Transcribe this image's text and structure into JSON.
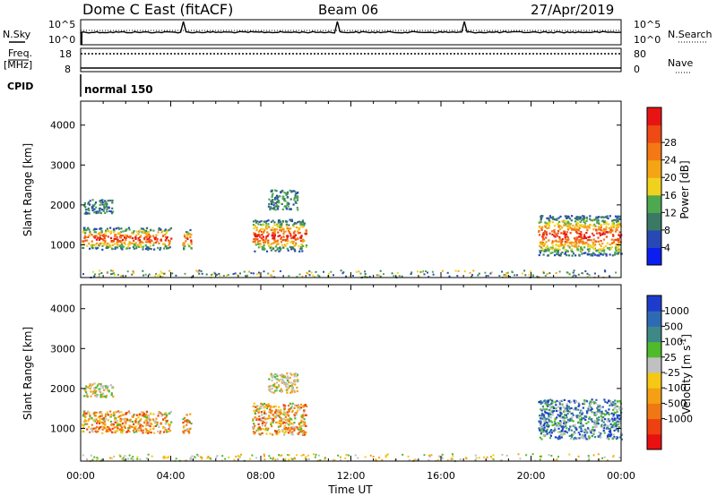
{
  "header": {
    "station": "Dome C East (fitACF)",
    "beam": "Beam 06",
    "date": "27/Apr/2019"
  },
  "top_panels": {
    "nsky_label": "N.Sky",
    "nsearch_label": "N.Search",
    "noise_ticks": [
      "10^5",
      "10^0"
    ],
    "freq_label_1": "Freq.",
    "freq_label_2": "[MHz]",
    "freq_ticks": [
      18,
      8
    ],
    "nave_label": "Nave",
    "nave_ticks": [
      80,
      0
    ],
    "cpid_label": "CPID",
    "cpid_value": "normal 150"
  },
  "axes": {
    "xlabel": "Time UT",
    "ylabel": "Slant Range [km]",
    "x_ticks": [
      "00:00",
      "04:00",
      "08:00",
      "12:00",
      "16:00",
      "20:00",
      "00:00"
    ],
    "y_ticks": [
      1000,
      2000,
      3000,
      4000
    ],
    "x_range_hours": [
      0,
      24
    ],
    "y_range_km": [
      180,
      4600
    ]
  },
  "colorbars": {
    "power": {
      "label": "Power [dB]",
      "ticks": [
        4,
        8,
        12,
        16,
        20,
        24,
        28
      ],
      "colors": [
        "#0a1ef0",
        "#2848b4",
        "#3a7a64",
        "#4ea850",
        "#f0d21e",
        "#f5a514",
        "#f47814",
        "#ee4a14",
        "#e81414"
      ]
    },
    "velocity": {
      "label": "Velocity [m s",
      "label_sup": "-1",
      "label_end": "]",
      "ticks": [
        "1000",
        "500",
        "100",
        "25",
        "-25",
        "-100",
        "-500",
        "-1000"
      ],
      "colors": [
        "#1e3ccc",
        "#2e6ab4",
        "#3e8888",
        "#4eba2c",
        "#c0c0c0",
        "#f5c814",
        "#f5a014",
        "#f07814",
        "#ee4010",
        "#e81010"
      ]
    }
  },
  "chart_data": [
    {
      "type": "heatmap",
      "name_panel": "power",
      "blobs": [
        {
          "t0": 0.05,
          "t1": 4.0,
          "r0": 900,
          "r1": 1450
        },
        {
          "t0": 0.1,
          "t1": 1.4,
          "r0": 1800,
          "r1": 2150
        },
        {
          "t0": 4.5,
          "t1": 4.9,
          "r0": 900,
          "r1": 1400
        },
        {
          "t0": 7.6,
          "t1": 10.0,
          "r0": 850,
          "r1": 1650
        },
        {
          "t0": 8.3,
          "t1": 9.6,
          "r0": 1900,
          "r1": 2400
        },
        {
          "t0": 20.3,
          "t1": 24.0,
          "r0": 750,
          "r1": 1750
        }
      ]
    },
    {
      "type": "heatmap",
      "name_panel": "velocity",
      "blobs": [
        {
          "t0": 0.05,
          "t1": 4.0,
          "r0": 900,
          "r1": 1450
        },
        {
          "t0": 0.1,
          "t1": 1.4,
          "r0": 1800,
          "r1": 2150
        },
        {
          "t0": 4.5,
          "t1": 4.9,
          "r0": 900,
          "r1": 1400
        },
        {
          "t0": 7.6,
          "t1": 10.0,
          "r0": 850,
          "r1": 1650
        },
        {
          "t0": 8.3,
          "t1": 9.6,
          "r0": 1900,
          "r1": 2400
        },
        {
          "t0": 20.3,
          "t1": 24.0,
          "r0": 750,
          "r1": 1750
        }
      ]
    }
  ]
}
